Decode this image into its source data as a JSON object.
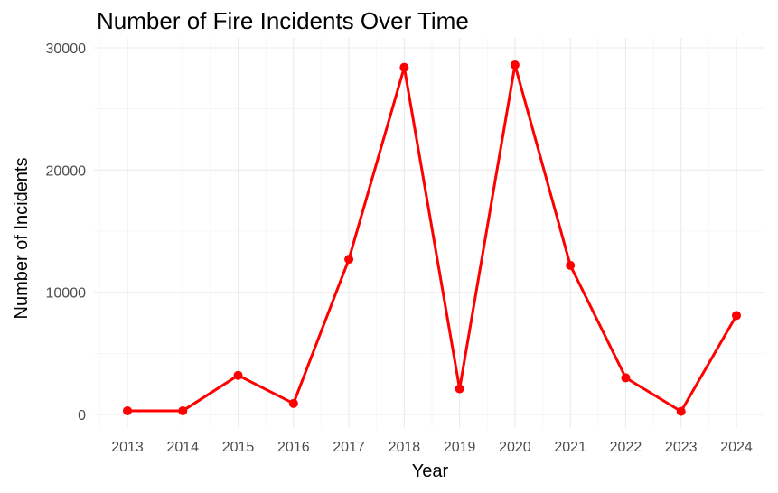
{
  "chart_data": {
    "type": "line",
    "title": "Number of Fire Incidents Over Time",
    "xlabel": "Year",
    "ylabel": "Number of Incidents",
    "categories": [
      "2013",
      "2014",
      "2015",
      "2016",
      "2017",
      "2018",
      "2019",
      "2020",
      "2021",
      "2022",
      "2023",
      "2024"
    ],
    "series": [
      {
        "values": [
          300,
          300,
          3200,
          900,
          12700,
          28400,
          2100,
          28600,
          12200,
          3000,
          250,
          8100
        ],
        "color": "#ff0000"
      }
    ],
    "y_ticks": [
      "0",
      "10000",
      "20000",
      "30000"
    ],
    "ylim": [
      0,
      30000
    ],
    "grid": true,
    "legend": "none"
  }
}
